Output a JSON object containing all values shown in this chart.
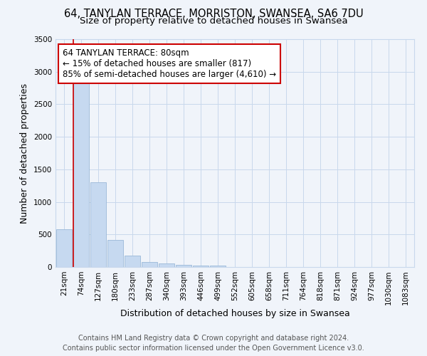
{
  "title": "64, TANYLAN TERRACE, MORRISTON, SWANSEA, SA6 7DU",
  "subtitle": "Size of property relative to detached houses in Swansea",
  "xlabel": "Distribution of detached houses by size in Swansea",
  "ylabel": "Number of detached properties",
  "footer_line1": "Contains HM Land Registry data © Crown copyright and database right 2024.",
  "footer_line2": "Contains public sector information licensed under the Open Government Licence v3.0.",
  "bar_labels": [
    "21sqm",
    "74sqm",
    "127sqm",
    "180sqm",
    "233sqm",
    "287sqm",
    "340sqm",
    "393sqm",
    "446sqm",
    "499sqm",
    "552sqm",
    "605sqm",
    "658sqm",
    "711sqm",
    "764sqm",
    "818sqm",
    "871sqm",
    "924sqm",
    "977sqm",
    "1030sqm",
    "1083sqm"
  ],
  "bar_values": [
    580,
    2920,
    1300,
    415,
    175,
    75,
    50,
    30,
    25,
    18,
    0,
    0,
    0,
    0,
    0,
    0,
    0,
    0,
    0,
    0,
    0
  ],
  "bar_color": "#c6d9f0",
  "bar_edge_color": "#9ab8d8",
  "vline_x_index": 1,
  "vline_color": "#cc0000",
  "annotation_text_line1": "64 TANYLAN TERRACE: 80sqm",
  "annotation_text_line2": "← 15% of detached houses are smaller (817)",
  "annotation_text_line3": "85% of semi-detached houses are larger (4,610) →",
  "ylim": [
    0,
    3500
  ],
  "yticks": [
    0,
    500,
    1000,
    1500,
    2000,
    2500,
    3000,
    3500
  ],
  "background_color": "#f0f4fa",
  "grid_color": "#c8d8ec",
  "title_fontsize": 10.5,
  "subtitle_fontsize": 9.5,
  "axis_label_fontsize": 9,
  "tick_fontsize": 7.5,
  "footer_fontsize": 7,
  "annotation_fontsize": 8.5
}
